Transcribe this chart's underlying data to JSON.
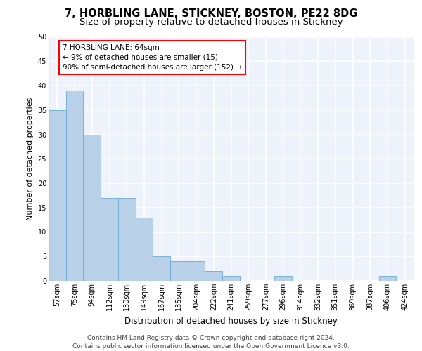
{
  "title": "7, HORBLING LANE, STICKNEY, BOSTON, PE22 8DG",
  "subtitle": "Size of property relative to detached houses in Stickney",
  "xlabel": "Distribution of detached houses by size in Stickney",
  "ylabel": "Number of detached properties",
  "categories": [
    "57sqm",
    "75sqm",
    "94sqm",
    "112sqm",
    "130sqm",
    "149sqm",
    "167sqm",
    "185sqm",
    "204sqm",
    "222sqm",
    "241sqm",
    "259sqm",
    "277sqm",
    "296sqm",
    "314sqm",
    "332sqm",
    "351sqm",
    "369sqm",
    "387sqm",
    "406sqm",
    "424sqm"
  ],
  "values": [
    35,
    39,
    30,
    17,
    17,
    13,
    5,
    4,
    4,
    2,
    1,
    0,
    0,
    1,
    0,
    0,
    0,
    0,
    0,
    1,
    0
  ],
  "bar_color": "#b8d0e8",
  "bar_edge_color": "#6aaad4",
  "annotation_text": "7 HORBLING LANE: 64sqm\n← 9% of detached houses are smaller (15)\n90% of semi-detached houses are larger (152) →",
  "annotation_box_color": "white",
  "annotation_box_edge_color": "red",
  "vline_color": "red",
  "ylim": [
    0,
    50
  ],
  "yticks": [
    0,
    5,
    10,
    15,
    20,
    25,
    30,
    35,
    40,
    45,
    50
  ],
  "bg_color": "#eef2fb",
  "grid_color": "white",
  "footer": "Contains HM Land Registry data © Crown copyright and database right 2024.\nContains public sector information licensed under the Open Government Licence v3.0.",
  "title_fontsize": 10.5,
  "subtitle_fontsize": 9.5,
  "xlabel_fontsize": 8.5,
  "ylabel_fontsize": 8,
  "tick_fontsize": 7,
  "annotation_fontsize": 7.5,
  "footer_fontsize": 6.5
}
